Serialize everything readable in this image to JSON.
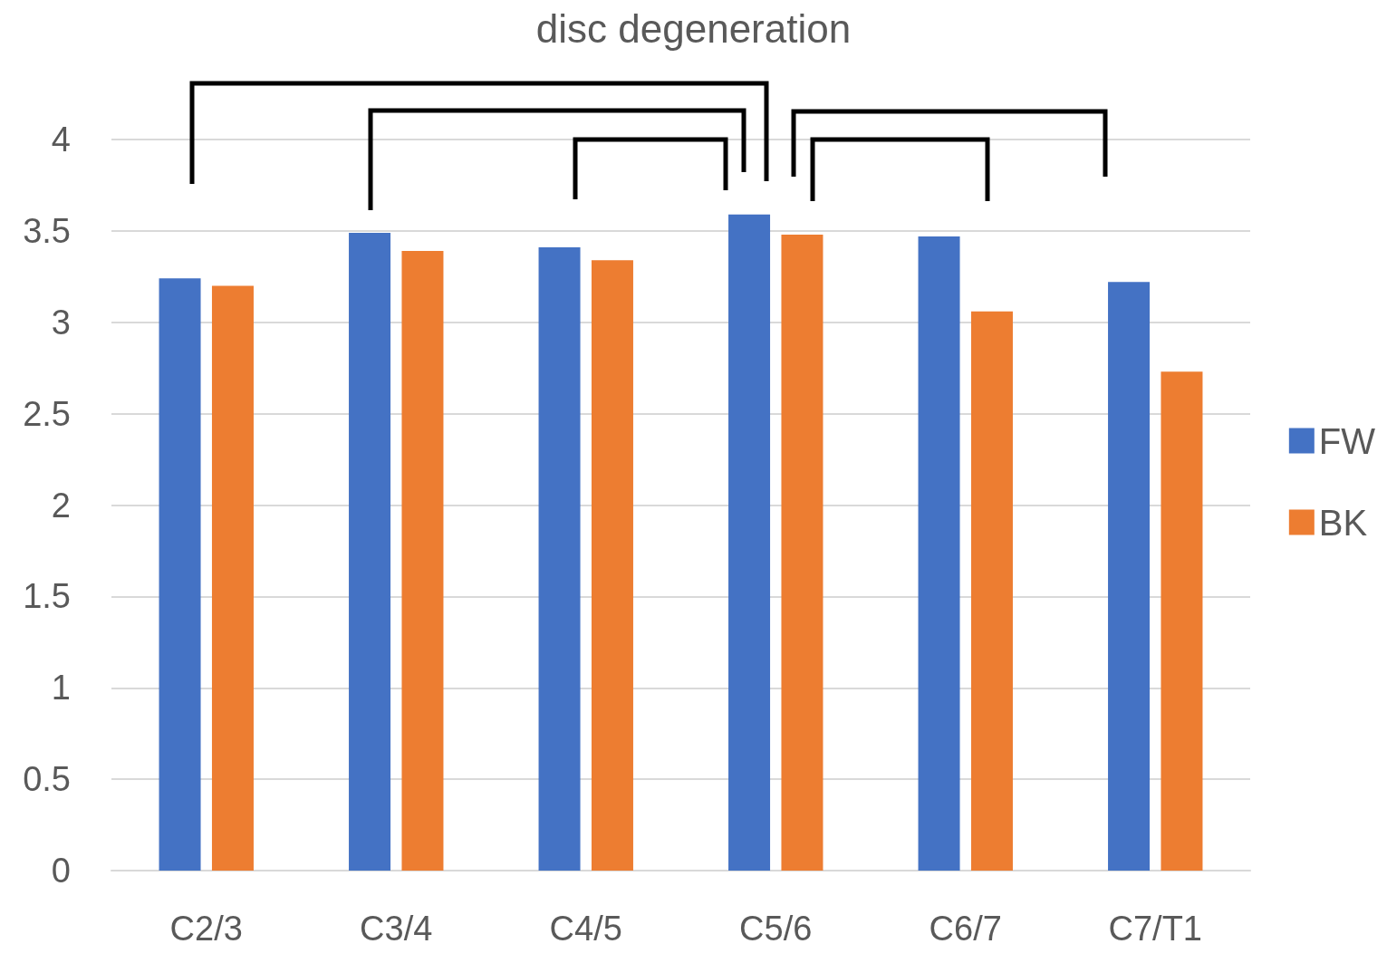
{
  "chart_data": {
    "type": "bar",
    "title": "disc degeneration",
    "categories": [
      "C2/3",
      "C3/4",
      "C4/5",
      "C5/6",
      "C6/7",
      "C7/T1"
    ],
    "series": [
      {
        "name": "FW",
        "color": "#4472c4",
        "values": [
          3.24,
          3.49,
          3.41,
          3.59,
          3.47,
          3.22
        ]
      },
      {
        "name": "BK",
        "color": "#ed7d31",
        "values": [
          3.2,
          3.39,
          3.34,
          3.48,
          3.06,
          2.73
        ]
      }
    ],
    "ylim": [
      0,
      4
    ],
    "yticks": [
      0,
      0.5,
      1,
      1.5,
      2,
      2.5,
      3,
      3.5,
      4
    ],
    "grid": "y",
    "legend": "right"
  }
}
